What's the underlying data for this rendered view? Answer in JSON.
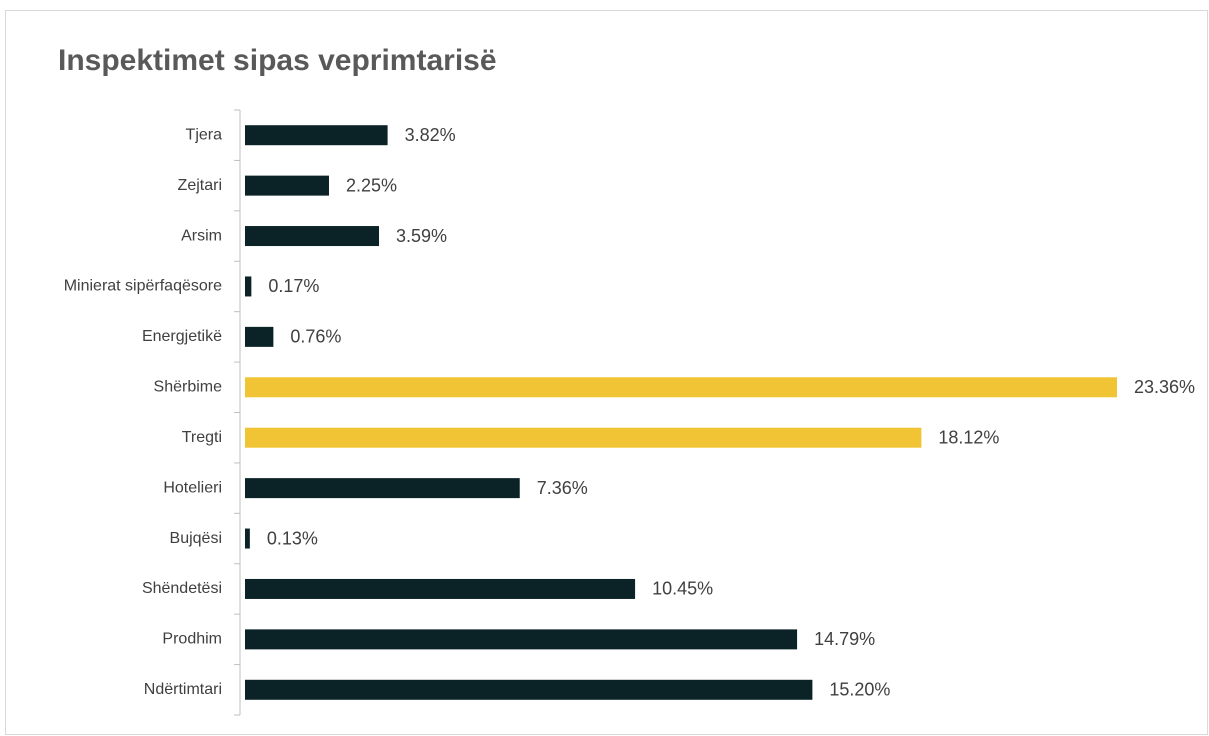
{
  "chart_data": {
    "type": "bar",
    "orientation": "horizontal",
    "title": "Inspektimet sipas veprimtarisë",
    "categories": [
      "Tjera",
      "Zejtari",
      "Arsim",
      "Minierat sipërfaqësore",
      "Energjetikë",
      "Shërbime",
      "Tregti",
      "Hotelieri",
      "Bujqësi",
      "Shëndetësi",
      "Prodhim",
      "Ndërtimtari"
    ],
    "values": [
      3.82,
      2.25,
      3.59,
      0.17,
      0.76,
      23.36,
      18.12,
      7.36,
      0.13,
      10.45,
      14.79,
      15.2
    ],
    "value_labels": [
      "3.82%",
      "2.25%",
      "3.59%",
      "0.17%",
      "0.76%",
      "23.36%",
      "18.12%",
      "7.36%",
      "0.13%",
      "10.45%",
      "14.79%",
      "15.20%"
    ],
    "colors": [
      "#0b2327",
      "#0b2327",
      "#0b2327",
      "#0b2327",
      "#0b2327",
      "#f0c434",
      "#f0c434",
      "#0b2327",
      "#0b2327",
      "#0b2327",
      "#0b2327",
      "#0b2327"
    ]
  }
}
